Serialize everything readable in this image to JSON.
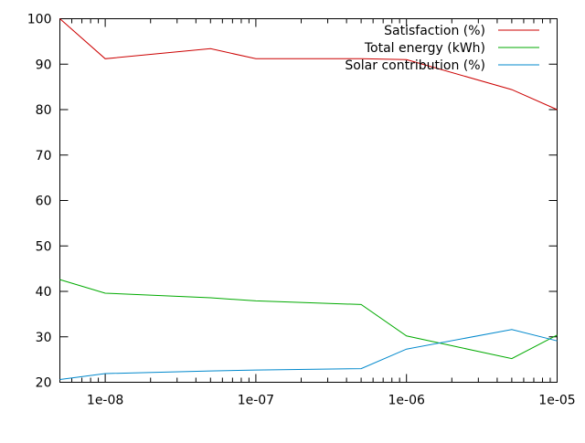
{
  "chart_data": {
    "type": "line",
    "title": "",
    "xlabel": "",
    "ylabel": "",
    "xscale": "log",
    "xlim": [
      5e-09,
      1e-05
    ],
    "ylim": [
      20,
      100
    ],
    "grid": false,
    "legend_position": "top-right",
    "x_ticks": [
      {
        "value": 1e-08,
        "label": "1e-08"
      },
      {
        "value": 1e-07,
        "label": "1e-07"
      },
      {
        "value": 1e-06,
        "label": "1e-06"
      },
      {
        "value": 1e-05,
        "label": "1e-05"
      }
    ],
    "y_ticks": [
      {
        "value": 20,
        "label": "20"
      },
      {
        "value": 30,
        "label": "30"
      },
      {
        "value": 40,
        "label": "40"
      },
      {
        "value": 50,
        "label": "50"
      },
      {
        "value": 60,
        "label": "60"
      },
      {
        "value": 70,
        "label": "70"
      },
      {
        "value": 80,
        "label": "80"
      },
      {
        "value": 90,
        "label": "90"
      },
      {
        "value": 100,
        "label": "100"
      }
    ],
    "x": [
      5e-09,
      1e-08,
      5e-08,
      1e-07,
      5e-07,
      1e-06,
      5e-06,
      1e-05
    ],
    "series": [
      {
        "name": "Satisfaction (%)",
        "color": "#cc0000",
        "values": [
          100,
          91.2,
          93.4,
          91.2,
          91.2,
          91.0,
          84.4,
          80.0
        ]
      },
      {
        "name": "Total energy (kWh)",
        "color": "#00aa00",
        "values": [
          42.6,
          39.6,
          38.6,
          37.9,
          37.1,
          30.2,
          25.2,
          30.4
        ]
      },
      {
        "name": "Solar contribution (%)",
        "color": "#0088cc",
        "values": [
          20.6,
          21.9,
          22.5,
          22.7,
          23.0,
          27.3,
          31.6,
          29.1
        ]
      }
    ]
  }
}
